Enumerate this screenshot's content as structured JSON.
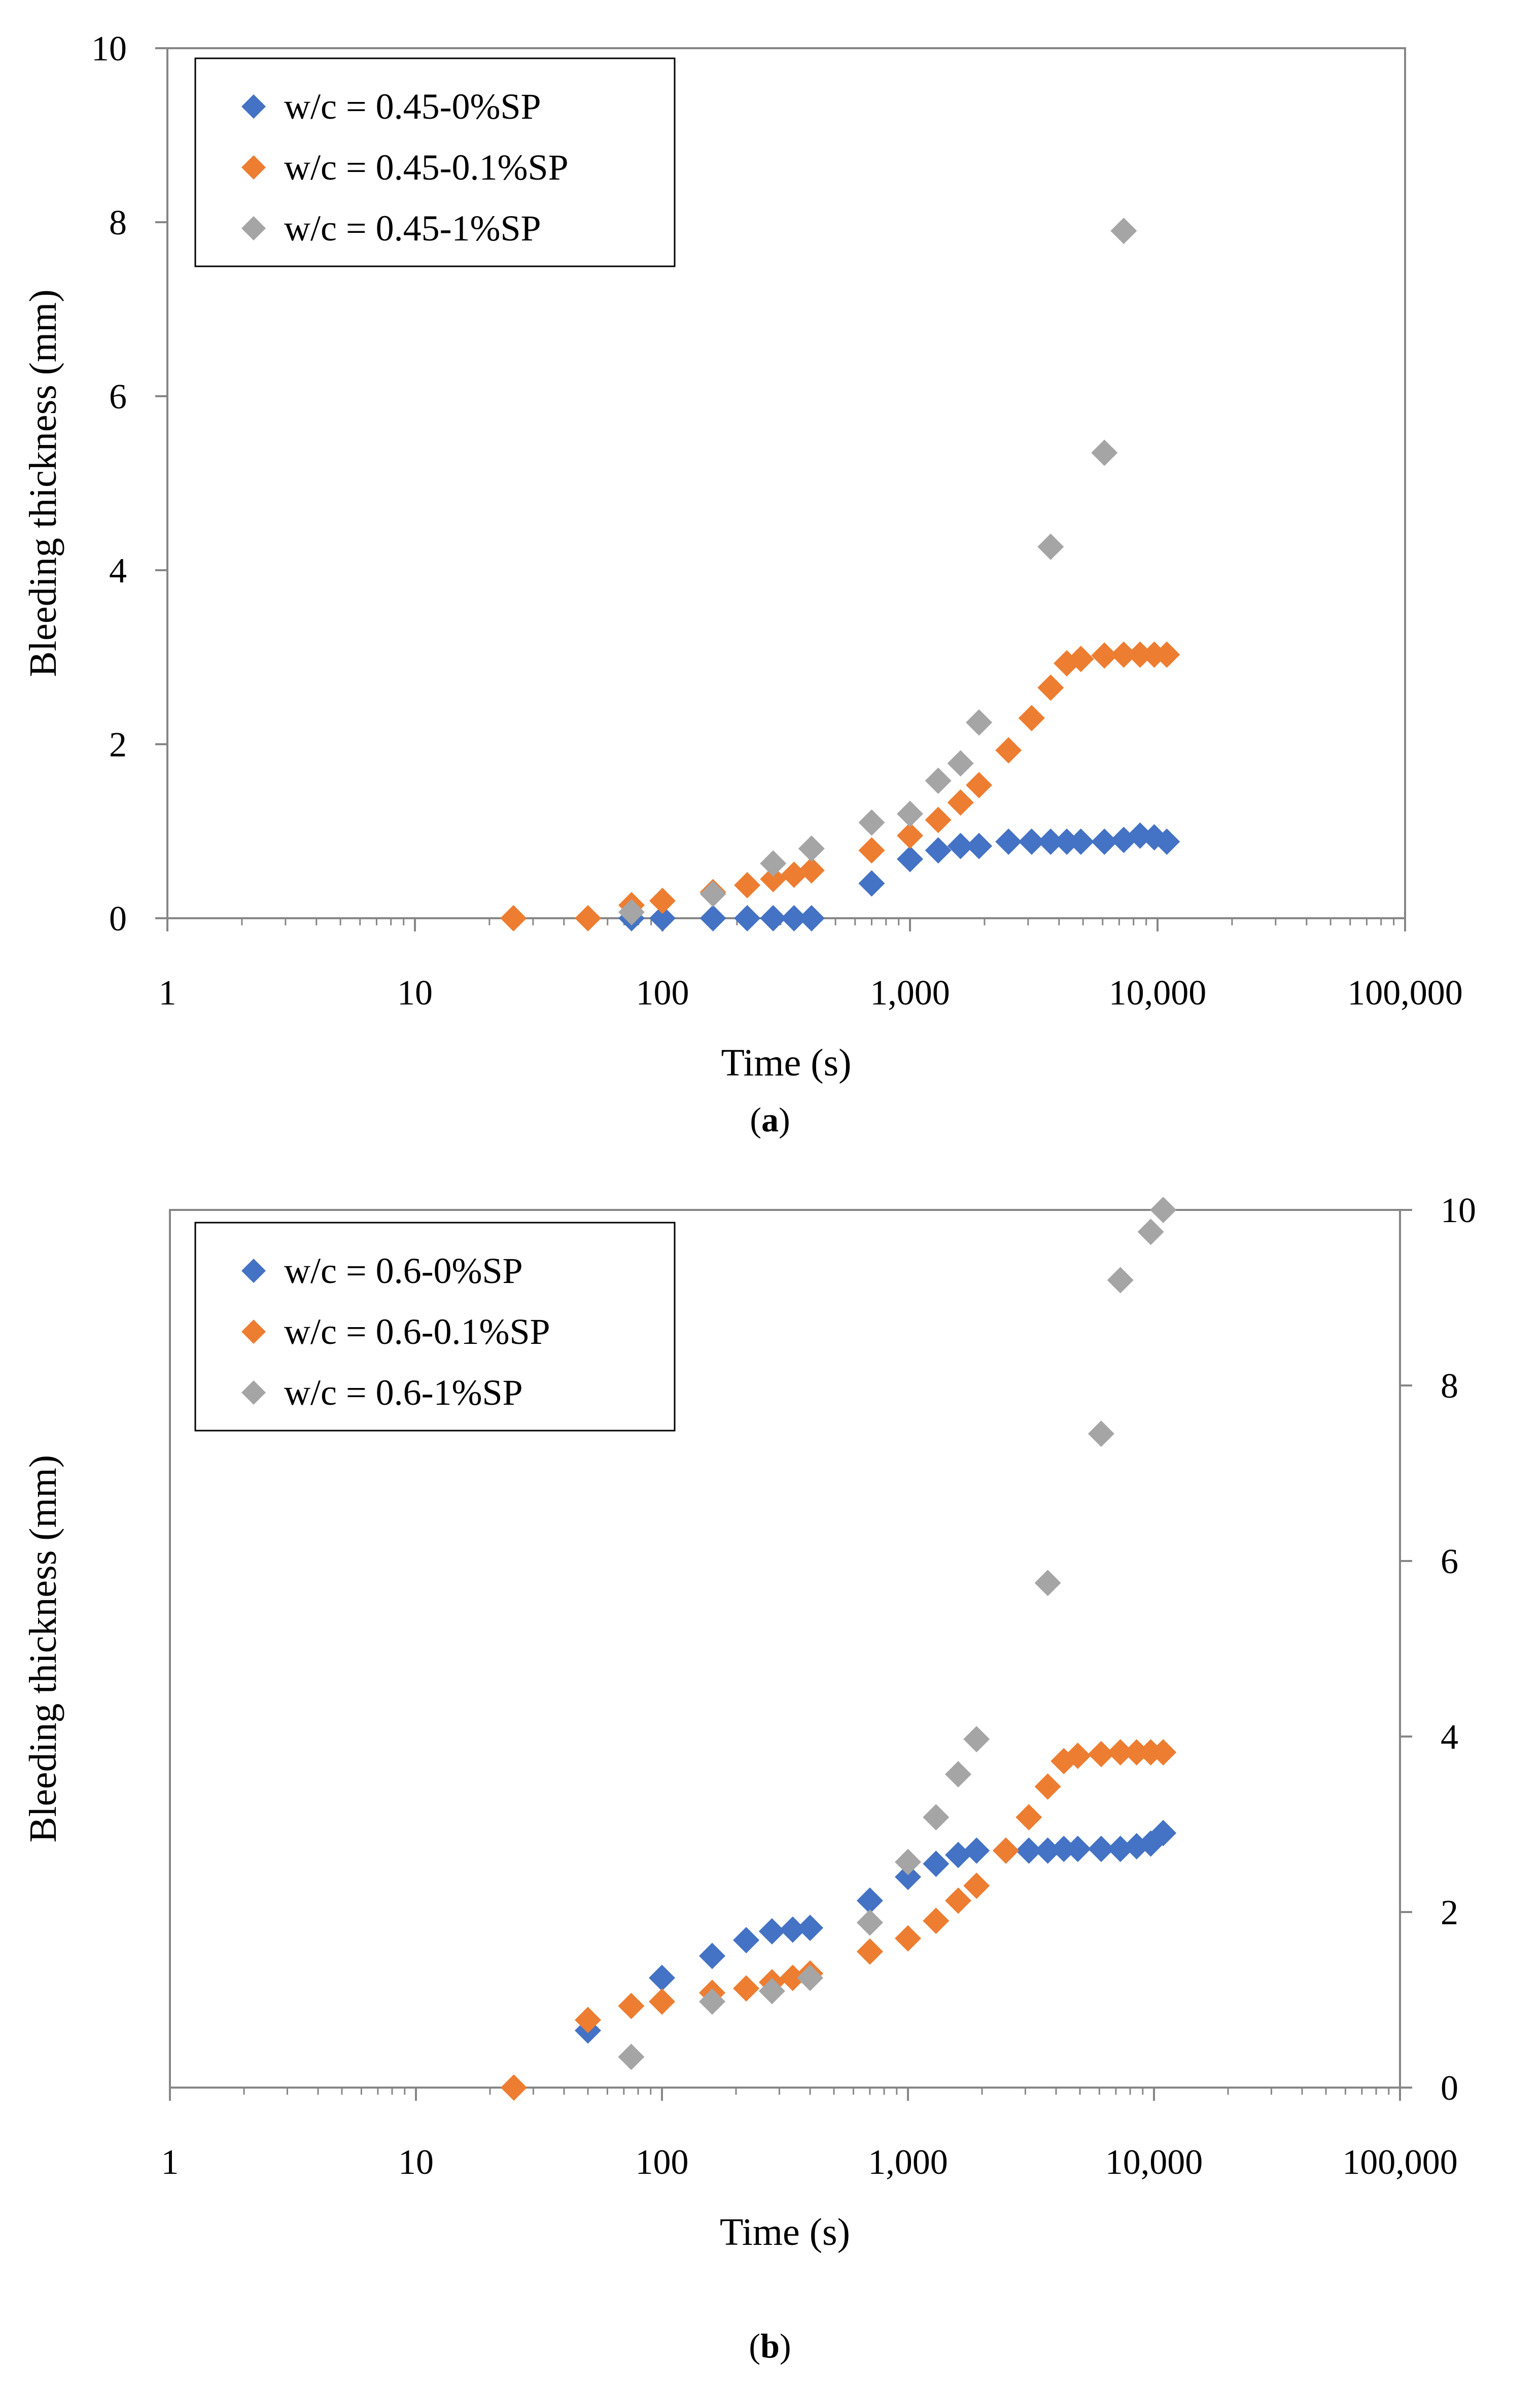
{
  "colors": {
    "series_0": "#4472C4",
    "series_1": "#ED7D31",
    "series_2": "#A5A5A5"
  },
  "captions": {
    "a": "a",
    "b": "b"
  },
  "chart_data": [
    {
      "type": "scatter",
      "panel": "a",
      "x_scale": "log",
      "xlim": [
        1,
        100000
      ],
      "ylim": [
        0,
        10
      ],
      "x_ticks": [
        1,
        10,
        100,
        1000,
        10000,
        100000
      ],
      "x_tick_labels": [
        "1",
        "10",
        "100",
        "1,000",
        "10,000",
        "100,000"
      ],
      "y_ticks": [
        0,
        2,
        4,
        6,
        8,
        10
      ],
      "y_tick_labels": [
        "0",
        "2",
        "4",
        "6",
        "8",
        "10"
      ],
      "y_axis_side": "left",
      "xlabel": "Time (s)",
      "ylabel": "Bleeding thickness (mm)",
      "legend_position": "top-left",
      "grid": false,
      "marker": "diamond",
      "series": [
        {
          "name": "w/c = 0.45-0%SP",
          "x": [
            75,
            100,
            160,
            220,
            280,
            340,
            400,
            700,
            1000,
            1300,
            1600,
            1900,
            2500,
            3100,
            3700,
            4300,
            4900,
            6100,
            7300,
            8500,
            9700,
            10900
          ],
          "y": [
            0,
            0,
            0,
            0,
            0,
            0,
            0,
            0.4,
            0.68,
            0.78,
            0.83,
            0.83,
            0.88,
            0.88,
            0.88,
            0.88,
            0.88,
            0.88,
            0.9,
            0.95,
            0.93,
            0.88
          ]
        },
        {
          "name": "w/c = 0.45-0.1%SP",
          "x": [
            25,
            50,
            75,
            100,
            160,
            220,
            280,
            340,
            400,
            700,
            1000,
            1300,
            1600,
            1900,
            2500,
            3100,
            3700,
            4300,
            4900,
            6100,
            7300,
            8500,
            9700,
            10900
          ],
          "y": [
            0,
            0,
            0.15,
            0.2,
            0.3,
            0.38,
            0.45,
            0.5,
            0.55,
            0.78,
            0.95,
            1.13,
            1.33,
            1.53,
            1.93,
            2.3,
            2.65,
            2.93,
            2.98,
            3.02,
            3.03,
            3.03,
            3.03,
            3.03
          ]
        },
        {
          "name": "w/c = 0.45-1%SP",
          "x": [
            75,
            160,
            280,
            400,
            700,
            1000,
            1300,
            1600,
            1900,
            3700,
            6100,
            7300
          ],
          "y": [
            0.07,
            0.28,
            0.63,
            0.8,
            1.1,
            1.2,
            1.58,
            1.78,
            2.25,
            4.27,
            5.35,
            7.9
          ]
        }
      ]
    },
    {
      "type": "scatter",
      "panel": "b",
      "x_scale": "log",
      "xlim": [
        1,
        100000
      ],
      "ylim": [
        0,
        10
      ],
      "x_ticks": [
        1,
        10,
        100,
        1000,
        10000,
        100000
      ],
      "x_tick_labels": [
        "1",
        "10",
        "100",
        "1,000",
        "10,000",
        "100,000"
      ],
      "y_ticks": [
        0,
        2,
        4,
        6,
        8,
        10
      ],
      "y_tick_labels": [
        "0",
        "2",
        "4",
        "6",
        "8",
        "10"
      ],
      "y_axis_side": "right",
      "xlabel": "Time (s)",
      "ylabel": "Bleeding thickness (mm)",
      "legend_position": "top-left",
      "grid": false,
      "marker": "diamond",
      "series": [
        {
          "name": "w/c = 0.6-0%SP",
          "x": [
            50,
            100,
            160,
            220,
            280,
            340,
            400,
            700,
            1000,
            1300,
            1600,
            1900,
            2500,
            3100,
            3700,
            4300,
            4900,
            6100,
            7300,
            8500,
            9700,
            10900
          ],
          "y": [
            0.65,
            1.25,
            1.5,
            1.68,
            1.78,
            1.8,
            1.82,
            2.13,
            2.4,
            2.55,
            2.65,
            2.7,
            2.7,
            2.7,
            2.7,
            2.72,
            2.72,
            2.72,
            2.72,
            2.75,
            2.78,
            2.9
          ]
        },
        {
          "name": "w/c = 0.6-0.1%SP",
          "x": [
            25,
            50,
            75,
            100,
            160,
            220,
            280,
            340,
            400,
            700,
            1000,
            1300,
            1600,
            1900,
            2500,
            3100,
            3700,
            4300,
            4900,
            6100,
            7300,
            8500,
            9700,
            10900
          ],
          "y": [
            0,
            0.77,
            0.93,
            0.98,
            1.08,
            1.13,
            1.2,
            1.25,
            1.3,
            1.55,
            1.7,
            1.9,
            2.13,
            2.3,
            2.7,
            3.08,
            3.43,
            3.72,
            3.78,
            3.8,
            3.82,
            3.82,
            3.82,
            3.82
          ]
        },
        {
          "name": "w/c = 0.6-1%SP",
          "x": [
            75,
            160,
            280,
            400,
            700,
            1000,
            1300,
            1600,
            1900,
            3700,
            6100,
            7300,
            9700,
            10900
          ],
          "y": [
            0.35,
            0.98,
            1.1,
            1.25,
            1.88,
            2.57,
            3.08,
            3.57,
            3.97,
            5.75,
            7.45,
            9.2,
            9.75,
            10
          ]
        }
      ]
    }
  ]
}
